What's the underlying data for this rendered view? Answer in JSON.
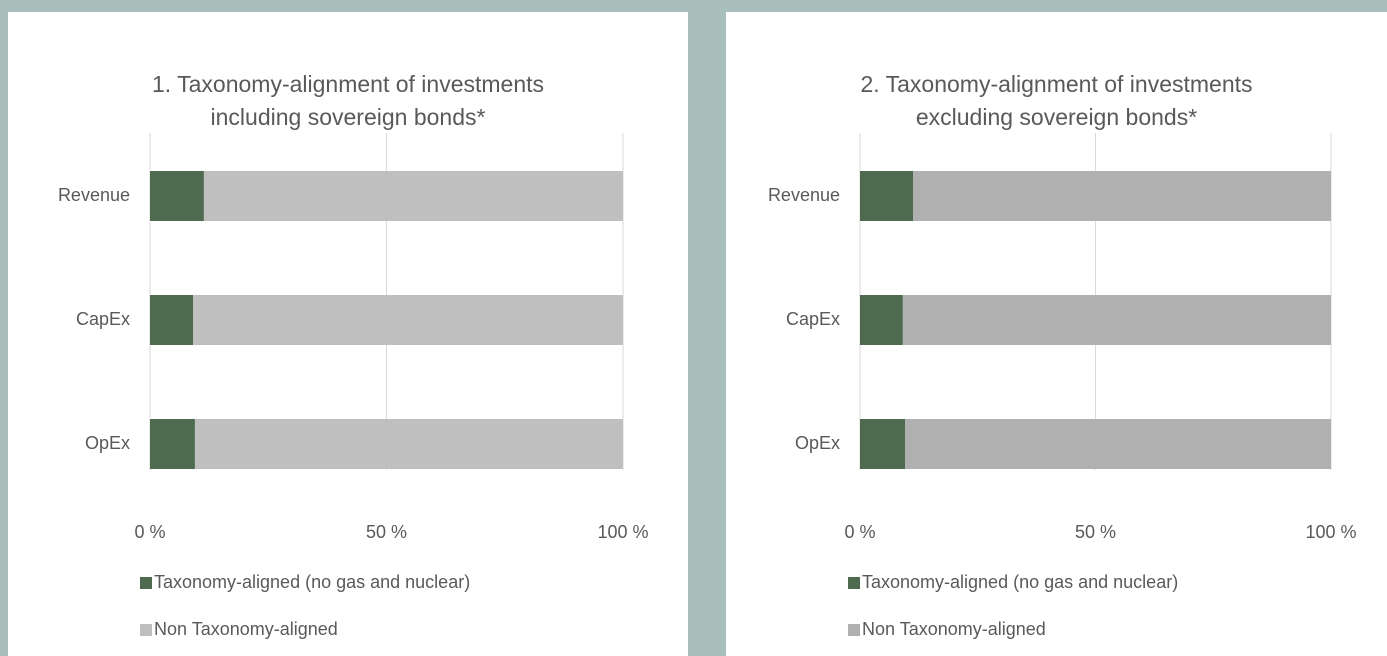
{
  "charts": [
    {
      "type": "stacked_bar_horizontal",
      "title": "1. Taxonomy-alignment of investments including sovereign bonds*",
      "categories": [
        "Revenue",
        "CapEx",
        "OpEx"
      ],
      "series": [
        {
          "name": "Taxonomy-aligned (no gas and nuclear)",
          "color": "#4e6b50",
          "values": [
            11.4,
            9.1,
            9.5
          ]
        },
        {
          "name": "Non Taxonomy-aligned",
          "color": "#bfbfbf",
          "values": [
            88.6,
            90.9,
            90.5
          ]
        }
      ],
      "xlim": [
        0,
        100
      ],
      "xticks": [
        {
          "value": 0,
          "label": "0 %"
        },
        {
          "value": 50,
          "label": "50 %"
        },
        {
          "value": 100,
          "label": "100 %"
        }
      ],
      "grid": true
    },
    {
      "type": "stacked_bar_horizontal",
      "title": "2. Taxonomy-alignment of investments excluding sovereign bonds*",
      "categories": [
        "Revenue",
        "CapEx",
        "OpEx"
      ],
      "series": [
        {
          "name": "Taxonomy-aligned (no gas and nuclear)",
          "color": "#4e6b50",
          "values": [
            11.3,
            9.1,
            9.6
          ]
        },
        {
          "name": "Non Taxonomy-aligned",
          "color": "#b0b0b0",
          "values": [
            88.7,
            90.9,
            90.4
          ]
        }
      ],
      "xlim": [
        0,
        100
      ],
      "xticks": [
        {
          "value": 0,
          "label": "0 %"
        },
        {
          "value": 50,
          "label": "50 %"
        },
        {
          "value": 100,
          "label": "100 %"
        }
      ],
      "grid": true
    }
  ]
}
